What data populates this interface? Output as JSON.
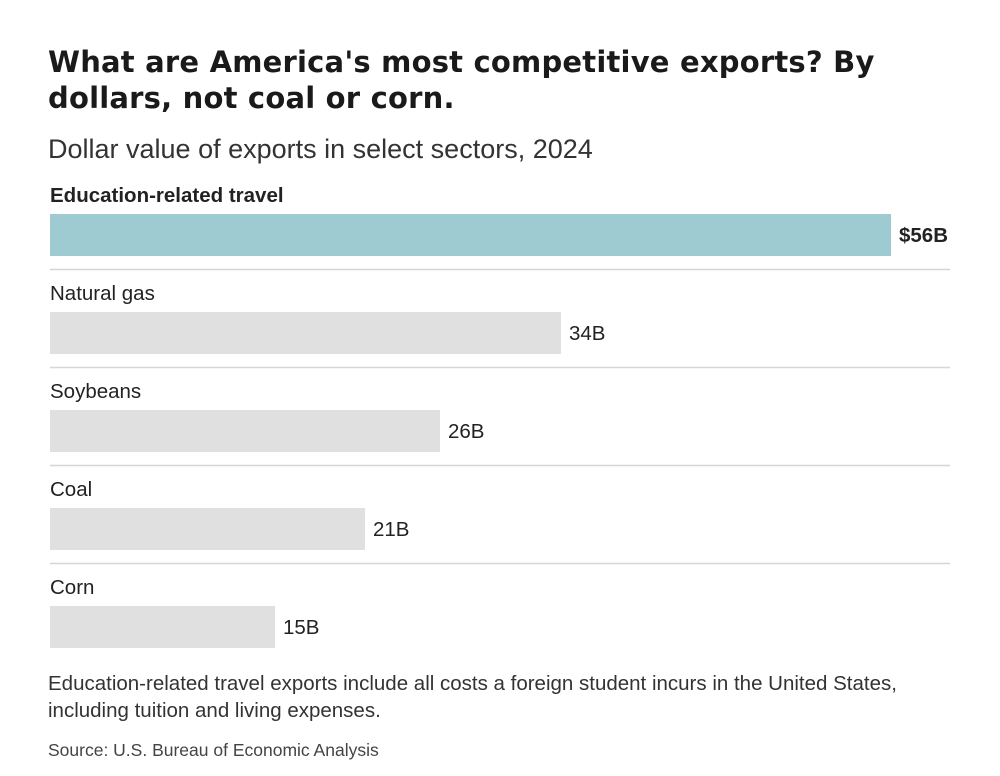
{
  "chart_data": {
    "type": "bar",
    "orientation": "horizontal",
    "title": "What are America's most competitive exports? By dollars, not coal or corn.",
    "subtitle": "Dollar value of exports in select sectors, 2024",
    "categories": [
      "Education-related travel",
      "Natural gas",
      "Soybeans",
      "Coal",
      "Corn"
    ],
    "values": [
      56,
      34,
      26,
      21,
      15
    ],
    "value_labels": [
      "$56B",
      "34B",
      "26B",
      "21B",
      "15B"
    ],
    "unit": "billion USD",
    "highlight_index": 0,
    "xlim": [
      0,
      56
    ],
    "colors": {
      "highlight": "#9ecbd2",
      "default": "#e0e0e0",
      "separator": "#d6d6d6"
    },
    "note": "Education-related travel exports include all costs a foreign student incurs in the United States, including tuition and living expenses.",
    "source": "Source: U.S. Bureau of Economic Analysis"
  }
}
